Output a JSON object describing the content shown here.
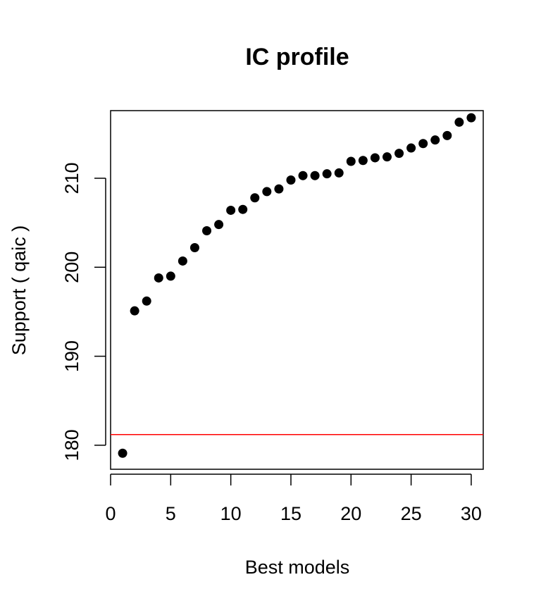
{
  "chart_data": {
    "type": "scatter",
    "title": "IC profile",
    "xlabel": "Best models",
    "ylabel": "Support ( qaic )",
    "xlim": [
      0,
      31
    ],
    "ylim": [
      177.3,
      217.6
    ],
    "x_ticks": [
      0,
      5,
      10,
      15,
      20,
      25,
      30
    ],
    "y_ticks": [
      180,
      190,
      200,
      210
    ],
    "x_tick_labels": [
      "0",
      "5",
      "10",
      "15",
      "20",
      "25",
      "30"
    ],
    "y_tick_labels": [
      "180",
      "190",
      "200",
      "210"
    ],
    "grid": false,
    "series": [
      {
        "x": [
          1,
          2,
          3,
          4,
          5,
          6,
          7,
          8,
          9,
          10,
          11,
          12,
          13,
          14,
          15,
          16,
          17,
          18,
          19,
          20,
          21,
          22,
          23,
          24,
          25,
          26,
          27,
          28,
          29,
          30
        ],
        "y": [
          179.1,
          195.1,
          196.2,
          198.8,
          199.0,
          200.7,
          202.2,
          204.1,
          204.8,
          206.4,
          206.5,
          207.8,
          208.5,
          208.8,
          209.8,
          210.3,
          210.3,
          210.5,
          210.6,
          211.9,
          212.0,
          212.3,
          212.4,
          212.8,
          213.4,
          213.9,
          214.3,
          214.8,
          216.3,
          216.8
        ],
        "color": "#000000"
      }
    ],
    "reference_line": {
      "orientation": "horizontal",
      "y": 181.2,
      "color": "#ff0000"
    }
  }
}
